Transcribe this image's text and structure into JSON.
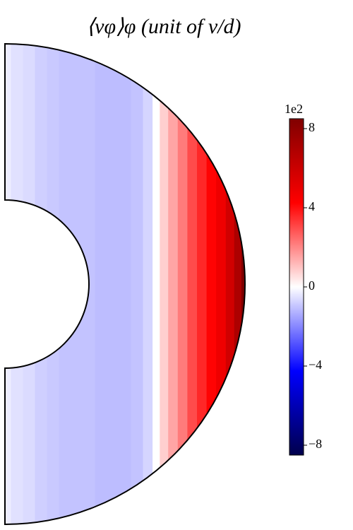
{
  "chart_data": {
    "type": "meridional-contour",
    "title": "⟨vφ⟩φ (unit of ν/d)",
    "colorbar_offset": "1e2",
    "clim": [
      -8.5,
      8.5
    ],
    "cticks": [
      {
        "value": 8,
        "label": "8"
      },
      {
        "value": 4,
        "label": "4"
      },
      {
        "value": 0,
        "label": "0"
      },
      {
        "value": -4,
        "label": "−4"
      },
      {
        "value": -8,
        "label": "−8"
      }
    ],
    "colormap": [
      "#00004c",
      "#0000ff",
      "#ffffff",
      "#ff0000",
      "#800000"
    ],
    "radius_ratio": 0.35,
    "x": [
      0,
      0.05,
      0.1,
      0.15,
      0.2,
      0.25,
      0.3,
      0.35,
      0.4,
      0.45,
      0.5,
      0.55,
      0.6,
      0.63,
      0.66,
      0.7,
      0.74,
      0.78,
      0.82,
      0.86,
      0.9,
      0.94,
      0.97,
      1.0
    ],
    "values": [
      -0.3,
      -0.5,
      -0.6,
      -0.8,
      -0.9,
      -1.0,
      -1.0,
      -1.0,
      -1.1,
      -1.1,
      -1.1,
      -1.0,
      -0.7,
      0.0,
      0.8,
      1.5,
      2.2,
      3.0,
      3.6,
      4.2,
      4.8,
      5.8,
      7.0,
      8.5
    ]
  }
}
